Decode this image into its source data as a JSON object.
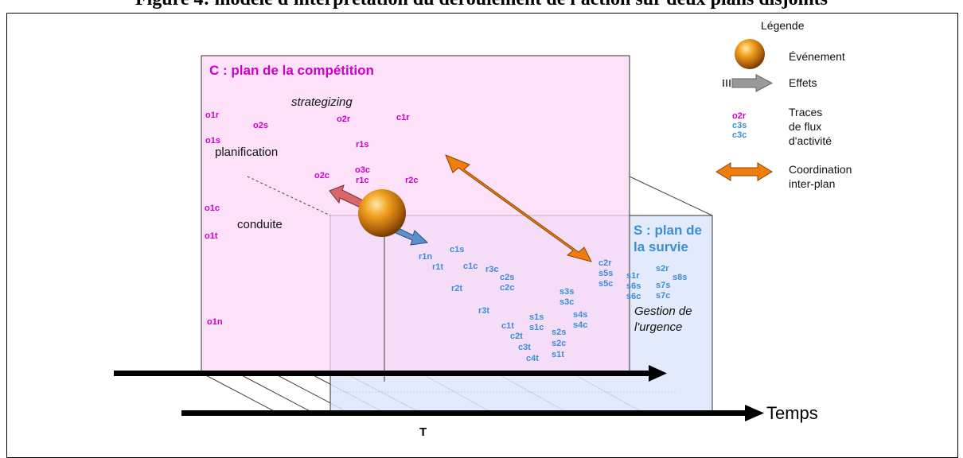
{
  "figure_title": "Figure 4: modèle d'interprétation du déroulement de l'action sur deux plans disjoints",
  "plans": {
    "competition": {
      "label": "C : plan de la compétition"
    },
    "survie": {
      "label_line1": "S : plan de",
      "label_line2": "la survie"
    }
  },
  "level_labels": {
    "strategizing": "strategizing",
    "planification": "planification",
    "conduite": "conduite",
    "gestion_line1": "Gestion de",
    "gestion_line2": "l'urgence"
  },
  "traces_competition": [
    "o1r",
    "o2s",
    "o2r",
    "c1r",
    "o1s",
    "r1s",
    "o2c",
    "o3c",
    "r1c",
    "r2c",
    "o1c",
    "o1t",
    "o1n"
  ],
  "traces_survie": [
    "r1n",
    "c1s",
    "r1t",
    "c1c",
    "r3c",
    "c2s",
    "c2c",
    "r2t",
    "c2r",
    "s5s",
    "s5c",
    "s1r",
    "s6s",
    "s6c",
    "s2r",
    "s8s",
    "s7s",
    "s7c",
    "s3s",
    "s3c",
    "r3t",
    "s4s",
    "s4c",
    "s1s",
    "s1c",
    "c1t",
    "c2t",
    "c3t",
    "c4t",
    "s2s",
    "s2c",
    "s1t"
  ],
  "axis": {
    "temps": "Temps",
    "marker": "T"
  },
  "legend": {
    "title": "Légende",
    "evenement": "Événement",
    "effets": "Effets",
    "traces_line1": "Traces",
    "traces_line2": "de flux",
    "traces_line3": "d'activité",
    "sample_traces": [
      "o2r",
      "c3s",
      "c3c"
    ],
    "coordination_line1": "Coordination",
    "coordination_line2": "inter-plan"
  },
  "colors": {
    "competition_fill": "#fbd7f6",
    "survie_fill": "#dde6fb",
    "magenta_text": "#cc00cc",
    "blue_text": "#3a8fd6",
    "orange_arrow": "#f07d10",
    "red_arrow": "#d9666b",
    "blue_arrow": "#5b8fd0",
    "grey_arrow": "#999999"
  }
}
